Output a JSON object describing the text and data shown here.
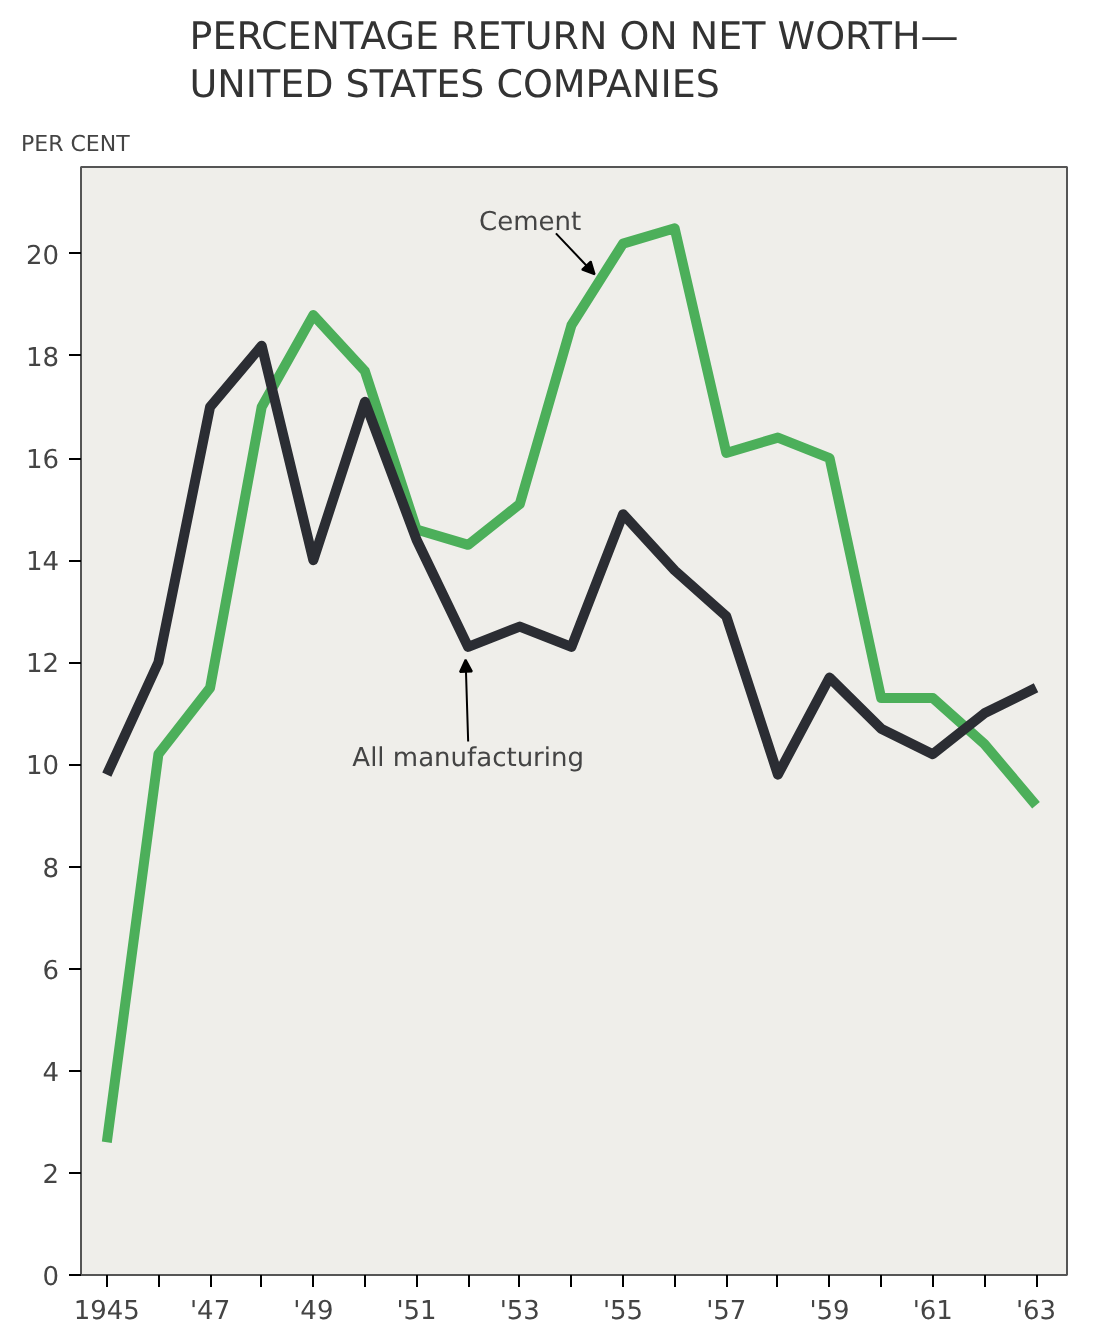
{
  "chart_data": {
    "type": "line",
    "title": "PERCENTAGE RETURN ON NET WORTH—\nUNITED STATES COMPANIES",
    "ylabel": "PER CENT",
    "x": [
      1945,
      1946,
      1947,
      1948,
      1949,
      1950,
      1951,
      1952,
      1953,
      1954,
      1955,
      1956,
      1957,
      1958,
      1959,
      1960,
      1961,
      1962,
      1963
    ],
    "series": [
      {
        "color": "#4caf5a",
        "values": [
          2.6,
          10.2,
          11.5,
          17.0,
          18.8,
          17.7,
          14.6,
          14.3,
          15.1,
          18.6,
          20.2,
          20.5,
          16.1,
          16.4,
          16.0,
          11.3,
          11.3,
          10.4,
          9.2
        ]
      },
      {
        "color": "#2b2d33",
        "values": [
          9.8,
          12.0,
          17.0,
          18.2,
          14.0,
          17.1,
          14.4,
          12.3,
          12.7,
          12.3,
          14.9,
          13.8,
          12.9,
          9.8,
          11.7,
          10.7,
          10.2,
          11.0,
          11.5
        ]
      }
    ],
    "annotations": [
      {
        "text": "Cement",
        "x": 1954.5,
        "y": 19.4
      },
      {
        "text": "All manufacturing",
        "x": 1952,
        "y": 12.3
      }
    ],
    "xlim": [
      1944.5,
      1963.6
    ],
    "ylim": [
      0,
      21.7
    ],
    "xticks": [
      {
        "value": 1945,
        "label": "1945"
      },
      {
        "value": 1946,
        "label": null
      },
      {
        "value": 1947,
        "label": "'47"
      },
      {
        "value": 1948,
        "label": null
      },
      {
        "value": 1949,
        "label": "'49"
      },
      {
        "value": 1950,
        "label": null
      },
      {
        "value": 1951,
        "label": "'51"
      },
      {
        "value": 1952,
        "label": null
      },
      {
        "value": 1953,
        "label": "'53"
      },
      {
        "value": 1954,
        "label": null
      },
      {
        "value": 1955,
        "label": "'55"
      },
      {
        "value": 1956,
        "label": null
      },
      {
        "value": 1957,
        "label": "'57"
      },
      {
        "value": 1958,
        "label": null
      },
      {
        "value": 1959,
        "label": "'59"
      },
      {
        "value": 1960,
        "label": null
      },
      {
        "value": 1961,
        "label": "'61"
      },
      {
        "value": 1962,
        "label": null
      },
      {
        "value": 1963,
        "label": "'63"
      }
    ],
    "yticks": [
      0,
      2,
      4,
      6,
      8,
      10,
      12,
      14,
      16,
      18,
      20
    ],
    "grid": false,
    "marker": "none",
    "line_style": "solid"
  }
}
